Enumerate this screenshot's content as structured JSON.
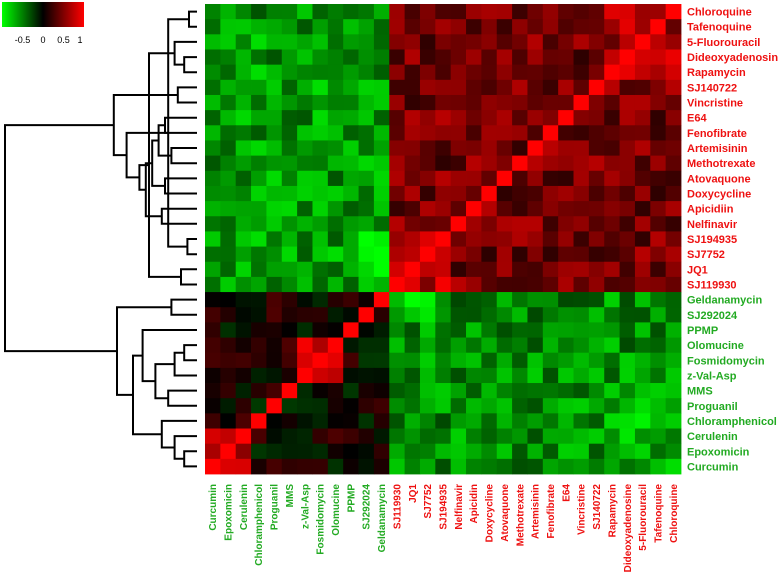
{
  "chart_data": {
    "type": "heatmap",
    "title": "",
    "colorbar": {
      "ticks": [
        "-0.5",
        "0",
        "0.5",
        "1"
      ],
      "tick_values": [
        -0.5,
        0,
        0.5,
        1
      ],
      "range": [
        -1,
        1
      ],
      "low_color": "#00ff00",
      "mid_color": "#000000",
      "high_color": "#ff0000",
      "placement": "top-left"
    },
    "rows": [
      {
        "label": "Chloroquine",
        "group": "red"
      },
      {
        "label": "Tafenoquine",
        "group": "red"
      },
      {
        "label": "5-Fluorouracil",
        "group": "red"
      },
      {
        "label": "Dideoxyadenosine",
        "group": "red"
      },
      {
        "label": "Rapamycin",
        "group": "red"
      },
      {
        "label": "SJ140722",
        "group": "red"
      },
      {
        "label": "Vincristine",
        "group": "red"
      },
      {
        "label": "E64",
        "group": "red"
      },
      {
        "label": "Fenofibrate",
        "group": "red"
      },
      {
        "label": "Artemisinin",
        "group": "red"
      },
      {
        "label": "Methotrexate",
        "group": "red"
      },
      {
        "label": "Atovaquone",
        "group": "red"
      },
      {
        "label": "Doxycycline",
        "group": "red"
      },
      {
        "label": "Apicidiin",
        "group": "red"
      },
      {
        "label": "Nelfinavir",
        "group": "red"
      },
      {
        "label": "SJ194935",
        "group": "red"
      },
      {
        "label": "SJ7752",
        "group": "red"
      },
      {
        "label": "JQ1",
        "group": "red"
      },
      {
        "label": "SJ119930",
        "group": "red"
      },
      {
        "label": "Geldanamycin",
        "group": "green"
      },
      {
        "label": "SJ292024",
        "group": "green"
      },
      {
        "label": "PPMP",
        "group": "green"
      },
      {
        "label": "Olomucine",
        "group": "green"
      },
      {
        "label": "Fosmidomycin",
        "group": "green"
      },
      {
        "label": "z-Val-Asp",
        "group": "green"
      },
      {
        "label": "MMS",
        "group": "green"
      },
      {
        "label": "Proguanil",
        "group": "green"
      },
      {
        "label": "Chloramphenicol",
        "group": "green"
      },
      {
        "label": "Cerulenin",
        "group": "green"
      },
      {
        "label": "Epoxomicin",
        "group": "green"
      },
      {
        "label": "Curcumin",
        "group": "green"
      }
    ],
    "columns": [
      {
        "label": "Curcumin",
        "group": "green"
      },
      {
        "label": "Epoxomicin",
        "group": "green"
      },
      {
        "label": "Cerulenin",
        "group": "green"
      },
      {
        "label": "Chloramphenicol",
        "group": "green"
      },
      {
        "label": "Proguanil",
        "group": "green"
      },
      {
        "label": "MMS",
        "group": "green"
      },
      {
        "label": "z-Val-Asp",
        "group": "green"
      },
      {
        "label": "Fosmidomycin",
        "group": "green"
      },
      {
        "label": "Olomucine",
        "group": "green"
      },
      {
        "label": "PPMP",
        "group": "green"
      },
      {
        "label": "SJ292024",
        "group": "green"
      },
      {
        "label": "Geldanamycin",
        "group": "green"
      },
      {
        "label": "SJ119930",
        "group": "red"
      },
      {
        "label": "JQ1",
        "group": "red"
      },
      {
        "label": "SJ7752",
        "group": "red"
      },
      {
        "label": "SJ194935",
        "group": "red"
      },
      {
        "label": "Nelfinavir",
        "group": "red"
      },
      {
        "label": "Apicidin",
        "group": "red"
      },
      {
        "label": "Doxycycline",
        "group": "red"
      },
      {
        "label": "Atovaquone",
        "group": "red"
      },
      {
        "label": "Methotrexate",
        "group": "red"
      },
      {
        "label": "Artemisinin",
        "group": "red"
      },
      {
        "label": "Fenofibrate",
        "group": "red"
      },
      {
        "label": "E64",
        "group": "red"
      },
      {
        "label": "Vincristine",
        "group": "red"
      },
      {
        "label": "SJ140722",
        "group": "red"
      },
      {
        "label": "Rapamycin",
        "group": "red"
      },
      {
        "label": "Dideoxyadenosine",
        "group": "red"
      },
      {
        "label": "5-Fluorouracil",
        "group": "red"
      },
      {
        "label": "Tafenoquine",
        "group": "red"
      },
      {
        "label": "Chloroquine",
        "group": "red"
      }
    ],
    "group_colors": {
      "red": "#ee1111",
      "green": "#22aa22"
    },
    "cluster_blocks": [
      {
        "rows": [
          0,
          18
        ],
        "cols": [
          12,
          30
        ],
        "value": 0.45
      },
      {
        "rows": [
          0,
          18
        ],
        "cols": [
          0,
          11
        ],
        "value": -0.6
      },
      {
        "rows": [
          19,
          30
        ],
        "cols": [
          12,
          30
        ],
        "value": -0.55
      },
      {
        "rows": [
          19,
          30
        ],
        "cols": [
          0,
          11
        ],
        "value": 0.05
      },
      {
        "rows": [
          15,
          18
        ],
        "cols": [
          12,
          15
        ],
        "value": 0.75
      },
      {
        "rows": [
          15,
          18
        ],
        "cols": [
          10,
          11
        ],
        "value": -0.9
      },
      {
        "rows": [
          0,
          4
        ],
        "cols": [
          26,
          30
        ],
        "value": 0.65
      },
      {
        "rows": [
          22,
          24
        ],
        "cols": [
          6,
          8
        ],
        "value": 0.75
      },
      {
        "rows": [
          28,
          30
        ],
        "cols": [
          0,
          2
        ],
        "value": 0.6
      },
      {
        "rows": [
          19,
          20
        ],
        "cols": [
          12,
          14
        ],
        "value": -0.85
      },
      {
        "rows": [
          26,
          30
        ],
        "cols": [
          26,
          30
        ],
        "value": -0.7
      }
    ],
    "diagonal_value": 1,
    "dendrogram": "rows, hierarchical; top cluster rows 0-18, bottom cluster rows 19-30"
  }
}
